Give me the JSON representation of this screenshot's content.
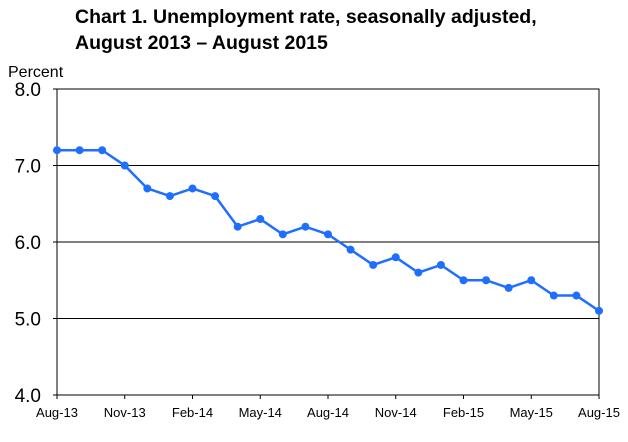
{
  "chart_data": {
    "type": "line",
    "title_line1": "Chart 1. Unemployment rate, seasonally adjusted,",
    "title_line2": "August 2013 – August 2015",
    "ylabel": "Percent",
    "xlabel": "",
    "ylim": [
      4.0,
      8.0
    ],
    "yticks": [
      "4.0",
      "5.0",
      "6.0",
      "7.0",
      "8.0"
    ],
    "grid": true,
    "x": [
      "Aug-13",
      "Sep-13",
      "Oct-13",
      "Nov-13",
      "Dec-13",
      "Jan-14",
      "Feb-14",
      "Mar-14",
      "Apr-14",
      "May-14",
      "Jun-14",
      "Jul-14",
      "Aug-14",
      "Sep-14",
      "Oct-14",
      "Nov-14",
      "Dec-14",
      "Jan-15",
      "Feb-15",
      "Mar-15",
      "Apr-15",
      "May-15",
      "Jun-15",
      "Jul-15",
      "Aug-15"
    ],
    "xtick_labels": [
      "Aug-13",
      "Nov-13",
      "Feb-14",
      "May-14",
      "Aug-14",
      "Nov-14",
      "Feb-15",
      "May-15",
      "Aug-15"
    ],
    "values": [
      7.2,
      7.2,
      7.2,
      7.0,
      6.7,
      6.6,
      6.7,
      6.6,
      6.2,
      6.3,
      6.1,
      6.2,
      6.1,
      5.9,
      5.7,
      5.8,
      5.6,
      5.7,
      5.5,
      5.5,
      5.4,
      5.5,
      5.3,
      5.3,
      5.1
    ],
    "line_color": "#1F6FFF"
  }
}
